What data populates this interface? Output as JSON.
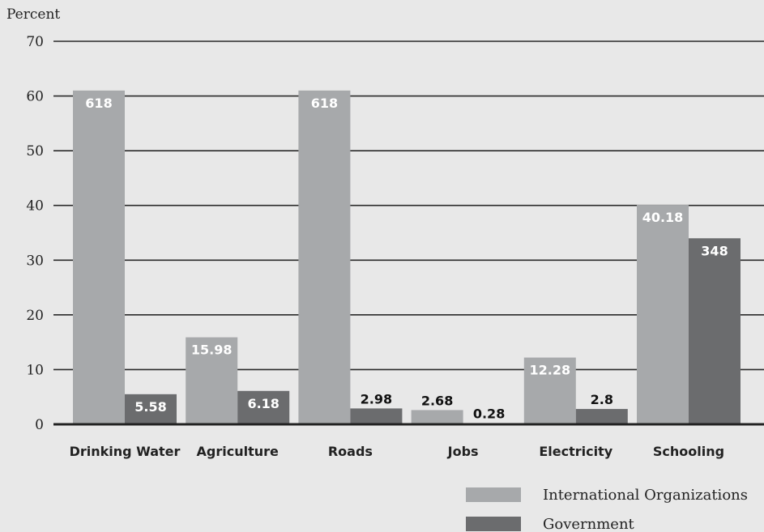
{
  "chart_data": {
    "type": "bar",
    "title": "",
    "xlabel": "",
    "ylabel": "Percent",
    "ylim": [
      0,
      70
    ],
    "yticks": [
      0,
      10,
      20,
      30,
      40,
      50,
      60,
      70
    ],
    "grid": "horizontal",
    "legend_position": "bottom-right",
    "categories": [
      "Drinking Water",
      "Agriculture",
      "Roads",
      "Jobs",
      "Electricity",
      "Schooling"
    ],
    "series": [
      {
        "name": "International Organizations",
        "color": "#a7a9ab",
        "values": [
          61,
          15.9,
          61,
          2.6,
          12.2,
          40.1
        ],
        "labels": [
          "618",
          "15.98",
          "618",
          "2.68",
          "12.28",
          "40.18"
        ]
      },
      {
        "name": "Government",
        "color": "#6b6c6e",
        "values": [
          5.5,
          6.1,
          2.9,
          0.2,
          2.8,
          34
        ],
        "labels": [
          "5.58",
          "6.18",
          "2.98",
          "0.28",
          "2.8",
          "348"
        ]
      }
    ]
  }
}
